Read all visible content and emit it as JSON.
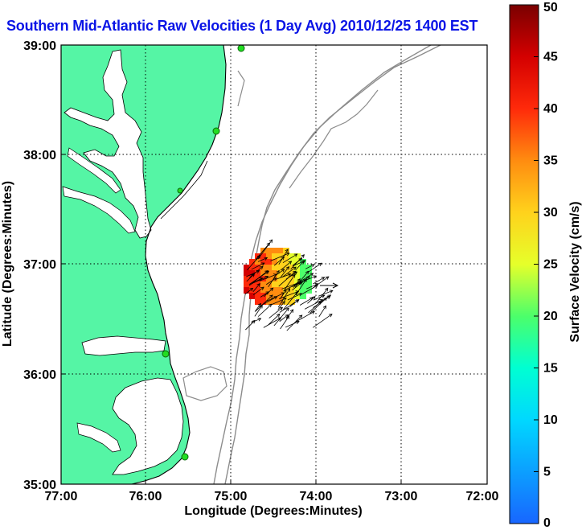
{
  "title": "Southern Mid-Atlantic Raw Velocities (1 Day Avg) 2010/12/25 1400 EST",
  "axes": {
    "xlabel": "Longitude (Degrees:Minutes)",
    "ylabel": "Latitude (Degrees:Minutes)",
    "x_ticks": [
      "77:00",
      "76:00",
      "75:00",
      "74:00",
      "73:00",
      "72:00"
    ],
    "y_ticks": [
      "39:00",
      "38:00",
      "37:00",
      "36:00",
      "35:00"
    ]
  },
  "colorbar": {
    "label": "Surface Velocity (cm/s)",
    "ticks": [
      "0",
      "5",
      "10",
      "15",
      "20",
      "25",
      "30",
      "35",
      "40",
      "45",
      "50"
    ],
    "min": 0,
    "max": 50
  },
  "colors": {
    "land": "#55f5a5",
    "title": "#0a14e6",
    "bathymetry": "#8c8c8c",
    "coastline": "#000000",
    "station": "#22dd22"
  },
  "chart_data": {
    "type": "vector-field",
    "xlim": [
      -77.0,
      -72.0
    ],
    "ylim": [
      35.0,
      39.0
    ],
    "grid": true,
    "colorbar_range": [
      0,
      50
    ],
    "stations": [
      {
        "lon": -75.1,
        "lat": 39.0
      },
      {
        "lon": -75.08,
        "lat": 38.2
      },
      {
        "lon": -75.55,
        "lat": 37.68
      },
      {
        "lon": -75.75,
        "lat": 36.18
      },
      {
        "lon": -75.45,
        "lat": 35.27
      }
    ],
    "reference_vector": {
      "lon": -73.75,
      "lat": 36.88,
      "angle_deg": 0
    }
  }
}
